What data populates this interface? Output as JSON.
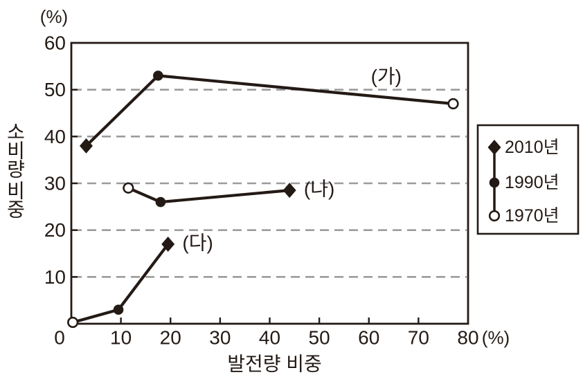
{
  "figure": {
    "background": "#ffffff",
    "ink_color": "#241a15",
    "grid_color": "#9b9b9b"
  },
  "chart_data": {
    "type": "line",
    "title": "",
    "xlabel": "발전량 비중",
    "ylabel": "소비량 비중",
    "x_unit_label": "(%)",
    "y_unit_label": "(%)",
    "xlim": [
      0,
      80
    ],
    "ylim": [
      0,
      60
    ],
    "x_ticks": [
      0,
      10,
      20,
      30,
      40,
      50,
      60,
      70,
      80
    ],
    "y_ticks": [
      10,
      20,
      30,
      40,
      50,
      60
    ],
    "gridlines_y": [
      10,
      20,
      30,
      40,
      50
    ],
    "grid_style": "horizontal-dashed",
    "legend": {
      "position": "outside-right",
      "entries": [
        {
          "label": "2010년",
          "marker": "diamond"
        },
        {
          "label": "1990년",
          "marker": "filled-circle"
        },
        {
          "label": "1970년",
          "marker": "open-circle"
        }
      ]
    },
    "series": [
      {
        "name": "(가)",
        "label_at": [
          63.5,
          52.8
        ],
        "points": [
          {
            "year": "2010년",
            "marker": "diamond",
            "x": 3,
            "y": 38
          },
          {
            "year": "1990년",
            "marker": "filled-circle",
            "x": 17.5,
            "y": 53
          },
          {
            "year": "1970년",
            "marker": "open-circle",
            "x": 77,
            "y": 47
          }
        ]
      },
      {
        "name": "(나)",
        "label_at": [
          50,
          28.8
        ],
        "points": [
          {
            "year": "1970년",
            "marker": "open-circle",
            "x": 11.5,
            "y": 29
          },
          {
            "year": "1990년",
            "marker": "filled-circle",
            "x": 18,
            "y": 26
          },
          {
            "year": "2010년",
            "marker": "diamond",
            "x": 44,
            "y": 28.5
          }
        ]
      },
      {
        "name": "(다)",
        "label_at": [
          25.5,
          17.3
        ],
        "points": [
          {
            "year": "1970년",
            "marker": "open-circle",
            "x": 0.3,
            "y": 0.3
          },
          {
            "year": "1990년",
            "marker": "filled-circle",
            "x": 9.5,
            "y": 3
          },
          {
            "year": "2010년",
            "marker": "diamond",
            "x": 19.5,
            "y": 17
          }
        ]
      }
    ]
  }
}
